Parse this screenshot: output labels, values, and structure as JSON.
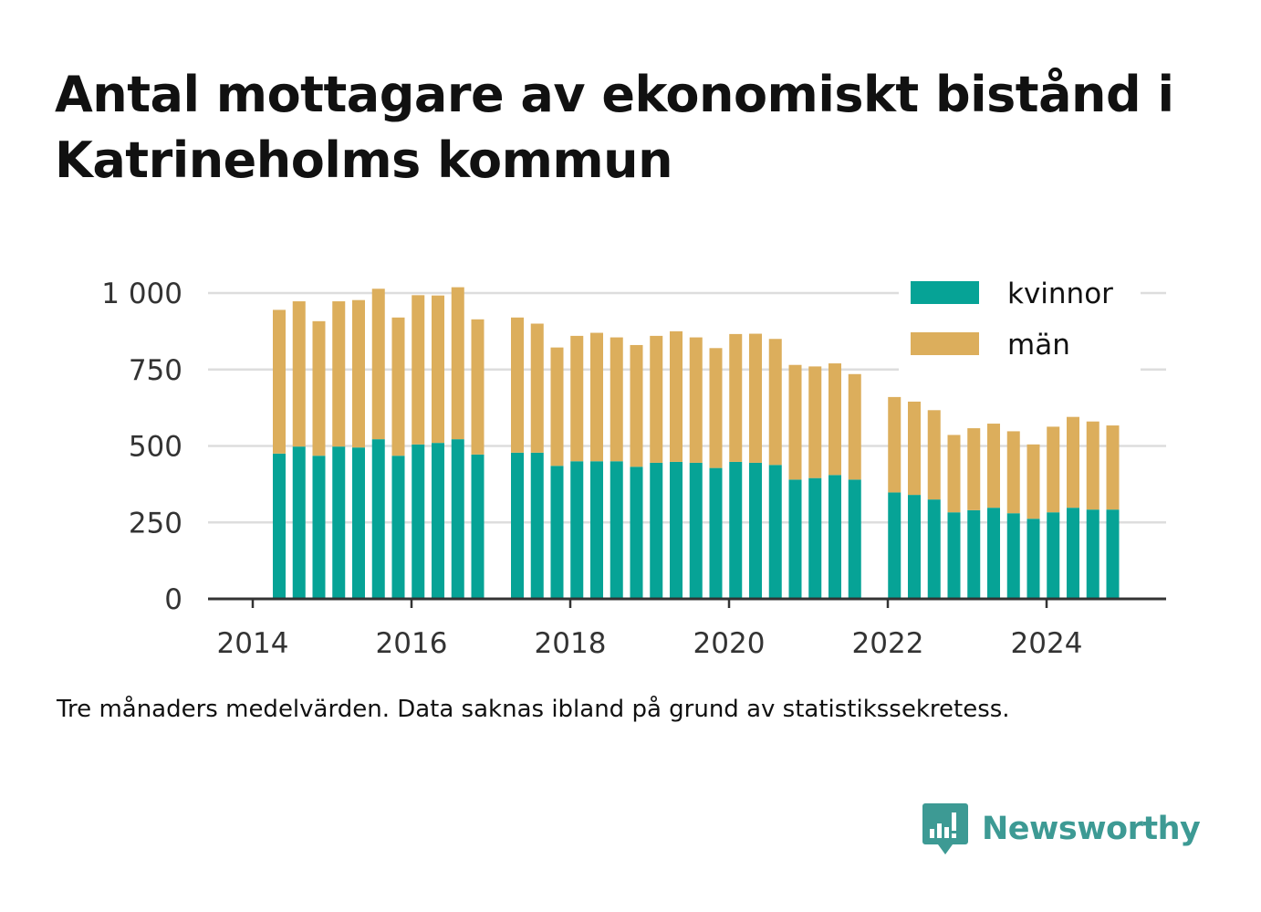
{
  "title": "Antal mottagare av ekonomiskt bistånd i Katrineholms kommun",
  "note": "Tre månaders medelvärden. Data saknas ibland på grund av statistikssekretess.",
  "brand": {
    "name": "Newsworthy",
    "icon": "newsworthy-logo-icon"
  },
  "colors": {
    "kvinnor": "#06a396",
    "man": "#dcae5c",
    "axis": "#333333",
    "grid": "#dddddd",
    "brand": "#3d9a94"
  },
  "chart_data": {
    "type": "bar",
    "stacked": true,
    "x_ticks": [
      "2014",
      "2016",
      "2018",
      "2020",
      "2022",
      "2024"
    ],
    "y_ticks": [
      "0",
      "250",
      "500",
      "750",
      "1 000"
    ],
    "ylim": [
      0,
      1050
    ],
    "grid": true,
    "legend_position": "top-right",
    "x": [
      "2014-05",
      "2014-08",
      "2014-11",
      "2015-02",
      "2015-05",
      "2015-08",
      "2015-11",
      "2016-02",
      "2016-05",
      "2016-08",
      "2016-11",
      "2017-02",
      "2017-05",
      "2017-08",
      "2017-11",
      "2018-02",
      "2018-05",
      "2018-08",
      "2018-11",
      "2019-02",
      "2019-05",
      "2019-08",
      "2019-11",
      "2020-02",
      "2020-05",
      "2020-08",
      "2020-11",
      "2021-02",
      "2021-05",
      "2021-08",
      "2021-11",
      "2022-02",
      "2022-05",
      "2022-08",
      "2022-11",
      "2023-02",
      "2023-05",
      "2023-08",
      "2023-11",
      "2024-02",
      "2024-05",
      "2024-08",
      "2024-11"
    ],
    "series": [
      {
        "name": "kvinnor",
        "values": [
          475,
          498,
          468,
          498,
          495,
          522,
          468,
          505,
          510,
          522,
          472,
          null,
          478,
          478,
          435,
          450,
          450,
          450,
          432,
          445,
          448,
          445,
          428,
          448,
          445,
          438,
          390,
          395,
          405,
          390,
          null,
          348,
          340,
          325,
          283,
          290,
          298,
          280,
          262,
          283,
          298,
          292,
          292
        ]
      },
      {
        "name": "män",
        "values": [
          470,
          475,
          440,
          475,
          482,
          492,
          452,
          488,
          482,
          497,
          442,
          null,
          442,
          422,
          387,
          410,
          420,
          405,
          398,
          415,
          427,
          410,
          392,
          418,
          422,
          412,
          375,
          365,
          365,
          345,
          null,
          312,
          305,
          292,
          253,
          268,
          275,
          268,
          243,
          280,
          297,
          288,
          275
        ]
      }
    ]
  }
}
